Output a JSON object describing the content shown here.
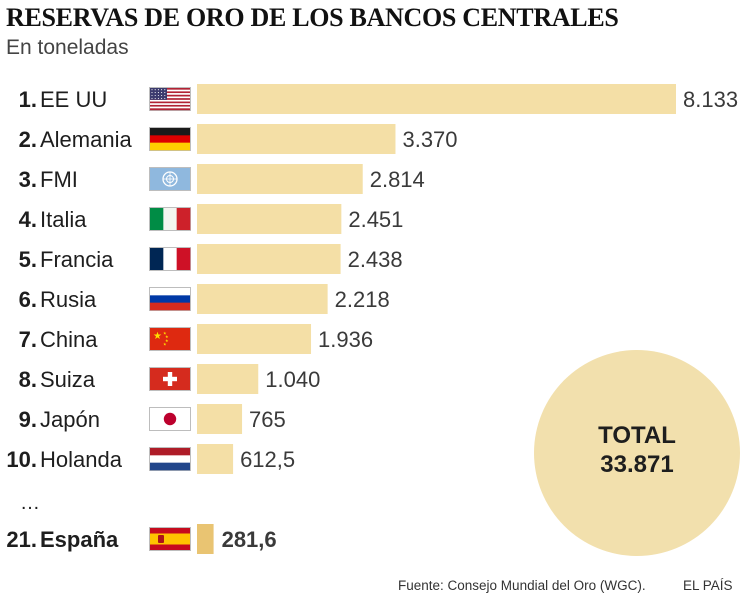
{
  "header": {
    "title": "RESERVAS DE ORO DE LOS BANCOS CENTRALES",
    "subtitle": "En toneladas"
  },
  "chart_data": {
    "type": "bar",
    "orientation": "horizontal",
    "title": "RESERVAS DE ORO DE LOS BANCOS CENTRALES",
    "subtitle": "En toneladas",
    "unit": "toneladas",
    "categories": [
      "EE UU",
      "Alemania",
      "FMI",
      "Italia",
      "Francia",
      "Rusia",
      "China",
      "Suiza",
      "Japón",
      "Holanda",
      "España"
    ],
    "ranks": [
      "1.",
      "2.",
      "3.",
      "4.",
      "5.",
      "6.",
      "7.",
      "8.",
      "9.",
      "10.",
      "21."
    ],
    "values": [
      8133,
      3370,
      2814,
      2451,
      2438,
      2218,
      1936,
      1040,
      765,
      612.5,
      281.6
    ],
    "value_labels": [
      "8.133",
      "3.370",
      "2.814",
      "2.451",
      "2.438",
      "2.218",
      "1.936",
      "1.040",
      "765",
      "612,5",
      "281,6"
    ],
    "flags": [
      "flag-usa-icon",
      "flag-germany-icon",
      "flag-un-icon",
      "flag-italy-icon",
      "flag-france-icon",
      "flag-russia-icon",
      "flag-china-icon",
      "flag-switzerland-icon",
      "flag-japan-icon",
      "flag-netherlands-icon",
      "flag-spain-icon"
    ],
    "highlight_index": 10,
    "ellipsis": "…",
    "xlim": [
      0,
      8133
    ],
    "colors": {
      "bar": "#f4dfa6",
      "highlight": "#e9c472",
      "total_circle": "#f2e0ad"
    },
    "total": {
      "label": "TOTAL",
      "value": "33.871"
    },
    "grid": false,
    "legend": "none"
  },
  "footer": {
    "source": "Fuente: Consejo Mundial del Oro (WGC).",
    "brand": "EL PAÍS"
  }
}
